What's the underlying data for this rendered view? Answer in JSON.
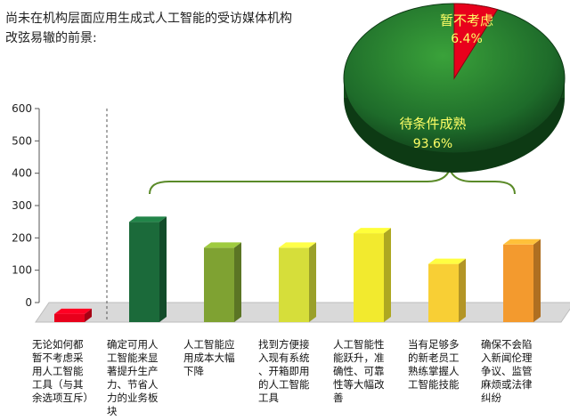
{
  "title_lines": [
    "尚未在机构层面应用生成式人工智能的受访媒体机构",
    "改弦易辙的前景:"
  ],
  "chart_data": [
    {
      "type": "bar",
      "categories": [
        "无论如何都\n暂不考虑采\n用人工智能\n工具（与其\n余选项互斥）",
        "确定可用人\n工智能来显\n著提升生产\n力、节省人\n力的业务板\n块",
        "人工智能应\n用成本大幅\n下降",
        "找到方便接\n入现有系统\n、开箱即用\n的人工智能\n工具",
        "人工智能性\n能跃升，准\n确性、可靠\n性等大幅改\n善",
        "当有足够多\n的新老员工\n熟练掌握人\n工智能技能",
        "确保不会陷\n入新闻伦理\n争议、监管\n麻烦或法律\n纠纷"
      ],
      "values": [
        25,
        310,
        230,
        230,
        275,
        180,
        240
      ],
      "colors": [
        "#e8001c",
        "#1b6a3a",
        "#7fa232",
        "#d6de3a",
        "#f2ea2e",
        "#f8cf35",
        "#f39a2e"
      ],
      "ylim": [
        0,
        600
      ],
      "yticks": [
        0,
        100,
        200,
        300,
        400,
        500,
        600
      ],
      "grid": false
    },
    {
      "type": "pie",
      "labels": [
        "暂不考虑",
        "待条件成熟"
      ],
      "percent_labels": [
        "6.4%",
        "93.6%"
      ],
      "values": [
        6.4,
        93.6
      ],
      "colors": [
        "#e8001c",
        "#1f7a2e"
      ]
    }
  ]
}
